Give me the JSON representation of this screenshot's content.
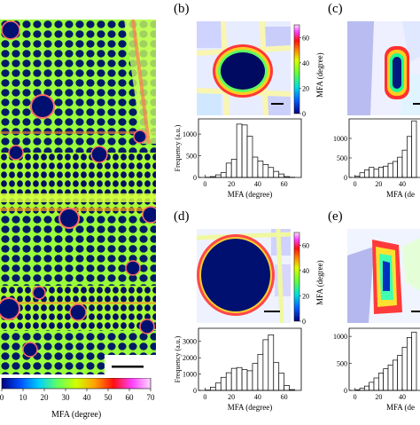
{
  "panel_a": {
    "colorbar_label": "MFA (degree)",
    "colorbar_ticks": [
      "0",
      "10",
      "20",
      "30",
      "40",
      "50",
      "60",
      "70"
    ],
    "colorbar_colors": [
      "#000080",
      "#0050ff",
      "#00d0ff",
      "#60ff60",
      "#d0ff00",
      "#ffa000",
      "#ff1010",
      "#ff40ff",
      "#ffd8ff"
    ]
  },
  "panels": [
    {
      "letter": "(b)",
      "colorbar_label": "MFA (degree)",
      "colorbar_ticks": [
        "0",
        "20",
        "40",
        "60"
      ],
      "hist_ylabel": "Frequency (a.u.)",
      "hist_xlabel": "MFA (degree)",
      "hist_yticks": [
        "0",
        "500",
        "1000"
      ],
      "hist_xticks": [
        "0",
        "20",
        "40",
        "60"
      ]
    },
    {
      "letter": "(c)",
      "hist_yticks": [
        "0",
        "500",
        "1000"
      ],
      "hist_xticks": [
        "0",
        "20",
        "40"
      ],
      "hist_xlabel": "MFA (de"
    },
    {
      "letter": "(d)",
      "colorbar_label": "MFA (degree)",
      "colorbar_ticks": [
        "0",
        "20",
        "40",
        "60"
      ],
      "hist_ylabel": "Frequency (a.u.)",
      "hist_xlabel": "MFA (degree)",
      "hist_yticks": [
        "0",
        "1000",
        "2000",
        "3000"
      ],
      "hist_xticks": [
        "0",
        "20",
        "40",
        "60"
      ]
    },
    {
      "letter": "(e)",
      "hist_yticks": [
        "0",
        "500",
        "1000"
      ],
      "hist_xticks": [
        "0",
        "20",
        "40"
      ],
      "hist_xlabel": "MFA (de"
    }
  ],
  "chart_data": [
    {
      "type": "bar",
      "title": "",
      "xlabel": "MFA (degree)",
      "ylabel": "Frequency (a.u.)",
      "xlim": [
        -5,
        73
      ],
      "ylim": [
        0,
        1350
      ],
      "bin_width": 4,
      "x": [
        2,
        6,
        10,
        14,
        18,
        22,
        26,
        30,
        34,
        38,
        42,
        46,
        50,
        54,
        58,
        62,
        66
      ],
      "values": [
        5,
        20,
        60,
        110,
        330,
        420,
        1230,
        1210,
        950,
        470,
        380,
        300,
        230,
        140,
        80,
        20,
        5
      ]
    },
    {
      "type": "bar",
      "title": "",
      "xlabel": "MFA (degree)",
      "ylabel": "",
      "xlim": [
        -5,
        55
      ],
      "ylim": [
        0,
        1500
      ],
      "bin_width": 4,
      "x": [
        2,
        6,
        10,
        14,
        18,
        22,
        26,
        30,
        34,
        38,
        42,
        46,
        50
      ],
      "values": [
        30,
        120,
        190,
        260,
        210,
        260,
        290,
        360,
        410,
        520,
        700,
        1050,
        1450
      ]
    },
    {
      "type": "bar",
      "title": "",
      "xlabel": "MFA (degree)",
      "ylabel": "Frequency (a.u.)",
      "xlim": [
        -5,
        73
      ],
      "ylim": [
        0,
        3800
      ],
      "bin_width": 4,
      "x": [
        2,
        6,
        10,
        14,
        18,
        22,
        26,
        30,
        34,
        38,
        42,
        46,
        50,
        54,
        58,
        62,
        66
      ],
      "values": [
        20,
        200,
        450,
        800,
        1080,
        1350,
        1400,
        1270,
        1200,
        1650,
        2200,
        3100,
        3400,
        1700,
        1050,
        300,
        50
      ]
    },
    {
      "type": "bar",
      "title": "",
      "xlabel": "MFA (degree)",
      "ylabel": "",
      "xlim": [
        -5,
        55
      ],
      "ylim": [
        0,
        1150
      ],
      "bin_width": 4,
      "x": [
        2,
        6,
        10,
        14,
        18,
        22,
        26,
        30,
        34,
        38,
        42,
        46,
        50
      ],
      "values": [
        10,
        40,
        80,
        150,
        230,
        320,
        400,
        470,
        560,
        650,
        800,
        980,
        1080
      ]
    }
  ]
}
